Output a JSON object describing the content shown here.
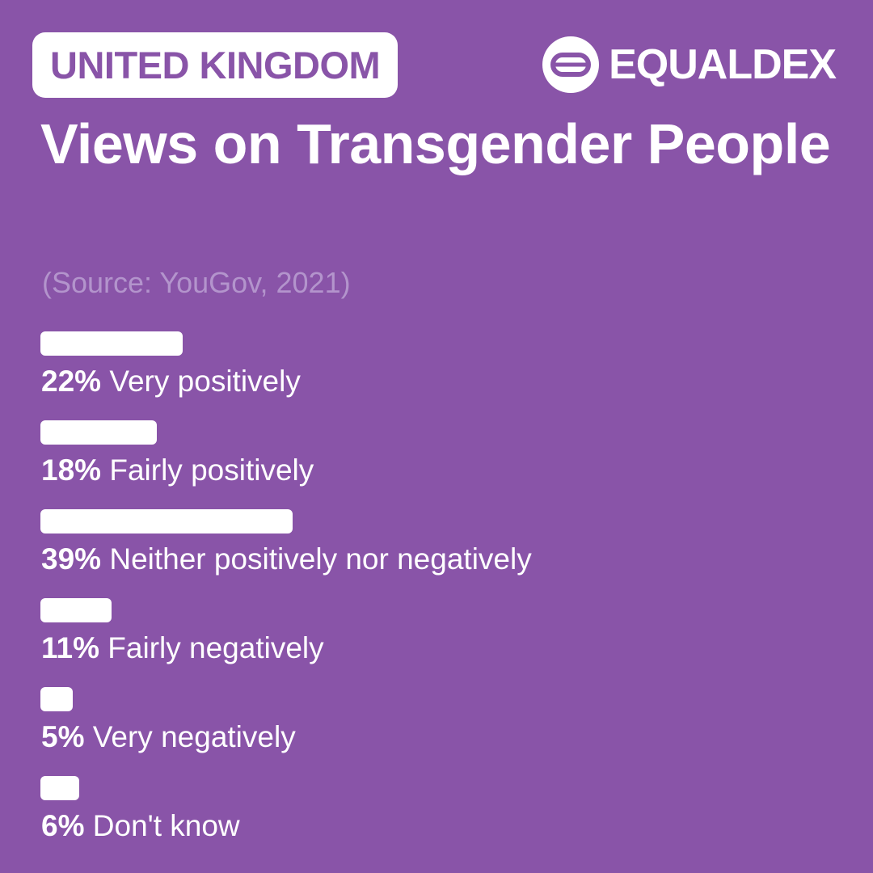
{
  "header": {
    "country": "UNITED KINGDOM",
    "brand": "EQUALDEX",
    "logo_icon": "equaldex-logo-icon"
  },
  "title": "Views on Transgender People",
  "source": "(Source: YouGov, 2021)",
  "colors": {
    "background": "#8954a8",
    "bar": "#ffffff",
    "source_text": "#b394cc"
  },
  "chart_data": {
    "type": "bar",
    "orientation": "horizontal",
    "title": "Views on Transgender People",
    "subtitle": "(Source: YouGov, 2021)",
    "categories": [
      "Very positively",
      "Fairly positively",
      "Neither positively nor negatively",
      "Fairly negatively",
      "Very negatively",
      "Don't know"
    ],
    "values": [
      22,
      18,
      39,
      11,
      5,
      6
    ],
    "value_labels": [
      "22%",
      "18%",
      "39%",
      "11%",
      "5%",
      "6%"
    ],
    "unit": "%",
    "xlim": [
      0,
      100
    ],
    "grid": false,
    "legend": "none"
  }
}
